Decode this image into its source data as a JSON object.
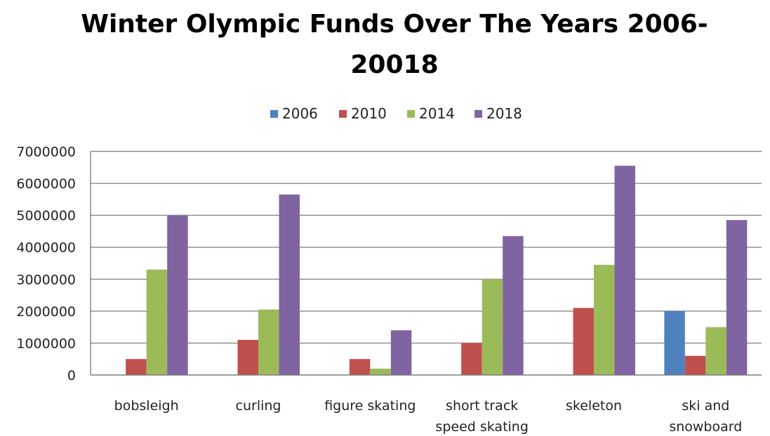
{
  "chart_data": {
    "type": "bar",
    "title": "Winter Olympic Funds Over The Years 2006-20018",
    "title_lines": [
      "Winter Olympic Funds Over The Years 2006-",
      "20018"
    ],
    "categories": [
      "bobsleigh",
      "curling",
      "figure skating",
      "short track speed skating",
      "skeleton",
      "ski and snowboard"
    ],
    "category_lines": [
      [
        "bobsleigh"
      ],
      [
        "curling"
      ],
      [
        "figure skating"
      ],
      [
        "short track",
        "speed skating"
      ],
      [
        "skeleton"
      ],
      [
        "ski and",
        "snowboard"
      ]
    ],
    "series": [
      {
        "name": "2006",
        "color": "#4F81BD",
        "values": [
          0,
          0,
          0,
          0,
          0,
          2000000
        ]
      },
      {
        "name": "2010",
        "color": "#C0504D",
        "values": [
          500000,
          1100000,
          500000,
          1000000,
          2100000,
          600000
        ]
      },
      {
        "name": "2014",
        "color": "#9BBB59",
        "values": [
          3300000,
          2050000,
          200000,
          3000000,
          3450000,
          1500000
        ]
      },
      {
        "name": "2018",
        "color": "#8064A2",
        "values": [
          5000000,
          5650000,
          1400000,
          4350000,
          6550000,
          4850000
        ]
      }
    ],
    "ylim": [
      0,
      7000000
    ],
    "yticks": [
      "0",
      "1000000",
      "2000000",
      "3000000",
      "4000000",
      "5000000",
      "6000000",
      "7000000"
    ],
    "xlabel": "",
    "ylabel": "",
    "legend": "top",
    "grid": true
  }
}
